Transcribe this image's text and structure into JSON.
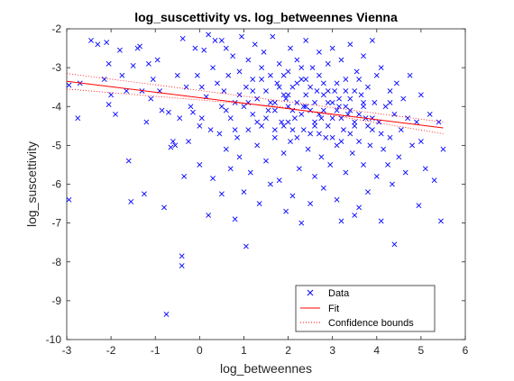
{
  "chart_data": {
    "type": "scatter",
    "title": "log_suscettivity vs. log_betweennes Vienna",
    "xlabel": "log_betweennes",
    "ylabel": "log_suscettivity",
    "xlim": [
      -3,
      6
    ],
    "ylim": [
      -10,
      -2
    ],
    "xticks": [
      -3,
      -2,
      -1,
      0,
      1,
      2,
      3,
      4,
      5,
      6
    ],
    "yticks": [
      -10,
      -9,
      -8,
      -7,
      -6,
      -5,
      -4,
      -3,
      -2
    ],
    "xtick_labels": [
      "-3",
      "-2",
      "-1",
      "0",
      "1",
      "2",
      "3",
      "4",
      "5",
      "6"
    ],
    "ytick_labels": [
      "-10",
      "-9",
      "-8",
      "-7",
      "-6",
      "-5",
      "-4",
      "-3",
      "-2"
    ],
    "grid": false,
    "legend_position": "bottom-right",
    "series": [
      {
        "name": "Data",
        "marker": "x",
        "color": "#0000ff",
        "points": [
          [
            -2.95,
            -3.45
          ],
          [
            -2.95,
            -6.4
          ],
          [
            -2.75,
            -4.3
          ],
          [
            -2.7,
            -3.4
          ],
          [
            -2.45,
            -2.3
          ],
          [
            -2.3,
            -2.4
          ],
          [
            -2.15,
            -3.3
          ],
          [
            -2.1,
            -2.35
          ],
          [
            -2.05,
            -2.9
          ],
          [
            -2.05,
            -3.95
          ],
          [
            -2.0,
            -3.7
          ],
          [
            -1.9,
            -4.2
          ],
          [
            -1.8,
            -2.55
          ],
          [
            -1.75,
            -3.2
          ],
          [
            -1.65,
            -3.6
          ],
          [
            -1.6,
            -5.4
          ],
          [
            -1.55,
            -6.45
          ],
          [
            -1.5,
            -2.95
          ],
          [
            -1.4,
            -2.5
          ],
          [
            -1.35,
            -2.45
          ],
          [
            -1.3,
            -3.6
          ],
          [
            -1.25,
            -6.25
          ],
          [
            -1.2,
            -4.4
          ],
          [
            -1.15,
            -2.9
          ],
          [
            -1.1,
            -3.8
          ],
          [
            -1.05,
            -3.3
          ],
          [
            -0.95,
            -2.8
          ],
          [
            -0.9,
            -3.6
          ],
          [
            -0.85,
            -4.1
          ],
          [
            -0.8,
            -6.6
          ],
          [
            -0.75,
            -9.35
          ],
          [
            -0.7,
            -4.15
          ],
          [
            -0.65,
            -5.05
          ],
          [
            -0.6,
            -4.9
          ],
          [
            -0.55,
            -5.0
          ],
          [
            -0.5,
            -3.2
          ],
          [
            -0.45,
            -4.3
          ],
          [
            -0.4,
            -8.1
          ],
          [
            -0.4,
            -7.85
          ],
          [
            -0.38,
            -2.25
          ],
          [
            -0.35,
            -5.8
          ],
          [
            -0.3,
            -3.5
          ],
          [
            -0.25,
            -4.9
          ],
          [
            -0.2,
            -4.0
          ],
          [
            -0.15,
            -4.15
          ],
          [
            -0.1,
            -2.5
          ],
          [
            -0.05,
            -3.2
          ],
          [
            0.0,
            -4.5
          ],
          [
            0.0,
            -5.5
          ],
          [
            0.05,
            -3.5
          ],
          [
            0.05,
            -4.3
          ],
          [
            0.1,
            -2.55
          ],
          [
            0.15,
            -3.75
          ],
          [
            0.2,
            -2.15
          ],
          [
            0.2,
            -6.8
          ],
          [
            0.25,
            -4.6
          ],
          [
            0.3,
            -3.0
          ],
          [
            0.3,
            -5.85
          ],
          [
            0.35,
            -2.3
          ],
          [
            0.4,
            -3.4
          ],
          [
            0.45,
            -4.7
          ],
          [
            0.5,
            -2.3
          ],
          [
            0.5,
            -6.25
          ],
          [
            0.55,
            -3.6
          ],
          [
            0.6,
            -2.5
          ],
          [
            0.6,
            -5.1
          ],
          [
            0.65,
            -3.2
          ],
          [
            0.7,
            -4.3
          ],
          [
            0.7,
            -5.6
          ],
          [
            0.75,
            -2.7
          ],
          [
            0.8,
            -3.9
          ],
          [
            0.8,
            -6.9
          ],
          [
            0.85,
            -4.8
          ],
          [
            0.9,
            -3.1
          ],
          [
            0.9,
            -5.3
          ],
          [
            0.95,
            -2.2
          ],
          [
            1.0,
            -4.0
          ],
          [
            1.0,
            -6.2
          ],
          [
            1.05,
            -7.6
          ],
          [
            1.05,
            -3.5
          ],
          [
            1.1,
            -4.6
          ],
          [
            1.1,
            -2.8
          ],
          [
            1.15,
            -5.7
          ],
          [
            1.2,
            -3.3
          ],
          [
            1.2,
            -4.2
          ],
          [
            1.25,
            -2.4
          ],
          [
            1.3,
            -3.8
          ],
          [
            1.3,
            -5.0
          ],
          [
            1.35,
            -6.5
          ],
          [
            1.4,
            -3.0
          ],
          [
            1.4,
            -4.5
          ],
          [
            1.45,
            -2.6
          ],
          [
            1.5,
            -3.6
          ],
          [
            1.5,
            -5.4
          ],
          [
            1.55,
            -4.1
          ],
          [
            1.6,
            -3.2
          ],
          [
            1.6,
            -6.0
          ],
          [
            1.65,
            -2.2
          ],
          [
            1.7,
            -3.9
          ],
          [
            1.7,
            -4.8
          ],
          [
            1.75,
            -3.4
          ],
          [
            1.8,
            -5.9
          ],
          [
            1.8,
            -2.9
          ],
          [
            1.85,
            -4.4
          ],
          [
            1.9,
            -3.7
          ],
          [
            1.9,
            -5.2
          ],
          [
            1.95,
            -6.7
          ],
          [
            2.0,
            -3.1
          ],
          [
            2.0,
            -4.0
          ],
          [
            2.05,
            -2.5
          ],
          [
            2.05,
            -4.9
          ],
          [
            2.1,
            -3.5
          ],
          [
            2.1,
            -6.3
          ],
          [
            2.15,
            -4.3
          ],
          [
            2.2,
            -2.8
          ],
          [
            2.2,
            -3.9
          ],
          [
            2.25,
            -5.6
          ],
          [
            2.3,
            -7.0
          ],
          [
            2.3,
            -3.3
          ],
          [
            2.35,
            -4.6
          ],
          [
            2.4,
            -2.3
          ],
          [
            2.4,
            -3.7
          ],
          [
            2.45,
            -5.1
          ],
          [
            2.5,
            -4.1
          ],
          [
            2.5,
            -6.5
          ],
          [
            2.55,
            -3.0
          ],
          [
            2.6,
            -4.5
          ],
          [
            2.6,
            -5.8
          ],
          [
            2.65,
            -3.6
          ],
          [
            2.7,
            -2.6
          ],
          [
            2.7,
            -4.2
          ],
          [
            2.75,
            -5.3
          ],
          [
            2.8,
            -3.4
          ],
          [
            2.8,
            -6.1
          ],
          [
            2.85,
            -4.8
          ],
          [
            2.9,
            -2.9
          ],
          [
            2.9,
            -3.9
          ],
          [
            2.95,
            -5.5
          ],
          [
            3.0,
            -4.3
          ],
          [
            3.0,
            -2.5
          ],
          [
            3.05,
            -3.6
          ],
          [
            3.1,
            -5.0
          ],
          [
            3.1,
            -6.4
          ],
          [
            3.15,
            -4.0
          ],
          [
            3.2,
            -2.8
          ],
          [
            3.2,
            -6.95
          ],
          [
            3.25,
            -4.6
          ],
          [
            3.3,
            -3.3
          ],
          [
            3.3,
            -5.7
          ],
          [
            3.35,
            -4.2
          ],
          [
            3.4,
            -2.4
          ],
          [
            3.4,
            -3.8
          ],
          [
            3.45,
            -5.2
          ],
          [
            3.5,
            -6.8
          ],
          [
            3.5,
            -4.4
          ],
          [
            3.55,
            -3.1
          ],
          [
            3.6,
            -4.9
          ],
          [
            3.6,
            -6.6
          ],
          [
            3.65,
            -3.7
          ],
          [
            3.7,
            -5.5
          ],
          [
            3.7,
            -2.7
          ],
          [
            3.75,
            -4.3
          ],
          [
            3.8,
            -6.2
          ],
          [
            3.8,
            -3.5
          ],
          [
            3.85,
            -5.0
          ],
          [
            3.9,
            -2.3
          ],
          [
            3.9,
            -4.6
          ],
          [
            3.95,
            -3.9
          ],
          [
            4.0,
            -5.8
          ],
          [
            4.0,
            -3.2
          ],
          [
            4.05,
            -4.4
          ],
          [
            4.1,
            -6.95
          ],
          [
            4.1,
            -3.0
          ],
          [
            4.15,
            -5.1
          ],
          [
            4.2,
            -4.0
          ],
          [
            4.25,
            -5.5
          ],
          [
            4.3,
            -3.6
          ],
          [
            4.3,
            -4.8
          ],
          [
            4.35,
            -6.0
          ],
          [
            4.4,
            -7.55
          ],
          [
            4.4,
            -4.2
          ],
          [
            4.45,
            -3.4
          ],
          [
            4.5,
            -5.3
          ],
          [
            4.55,
            -4.6
          ],
          [
            4.6,
            -3.8
          ],
          [
            4.65,
            -5.7
          ],
          [
            4.7,
            -4.3
          ],
          [
            4.75,
            -3.2
          ],
          [
            4.8,
            -5.0
          ],
          [
            4.9,
            -4.4
          ],
          [
            4.95,
            -6.55
          ],
          [
            5.0,
            -3.7
          ],
          [
            5.0,
            -4.9
          ],
          [
            5.1,
            -5.6
          ],
          [
            5.2,
            -4.2
          ],
          [
            5.3,
            -5.9
          ],
          [
            5.4,
            -4.4
          ],
          [
            5.45,
            -6.95
          ],
          [
            5.5,
            -5.1
          ],
          [
            0.6,
            -4.1
          ],
          [
            0.9,
            -3.7
          ],
          [
            1.2,
            -3.6
          ],
          [
            1.5,
            -4.3
          ],
          [
            1.7,
            -4.1
          ],
          [
            1.9,
            -4.5
          ],
          [
            2.0,
            -3.7
          ],
          [
            2.1,
            -4.6
          ],
          [
            2.2,
            -3.4
          ],
          [
            2.3,
            -4.2
          ],
          [
            2.4,
            -4.0
          ],
          [
            2.5,
            -3.5
          ],
          [
            2.6,
            -3.9
          ],
          [
            2.7,
            -4.7
          ],
          [
            2.8,
            -4.1
          ],
          [
            2.9,
            -3.6
          ],
          [
            3.0,
            -4.8
          ],
          [
            3.1,
            -3.4
          ],
          [
            3.2,
            -4.3
          ],
          [
            3.3,
            -4.0
          ],
          [
            3.4,
            -4.7
          ],
          [
            3.5,
            -3.6
          ],
          [
            3.6,
            -4.2
          ],
          [
            3.7,
            -3.9
          ],
          [
            3.8,
            -4.5
          ],
          [
            1.6,
            -3.9
          ],
          [
            1.8,
            -3.5
          ],
          [
            2.0,
            -4.4
          ],
          [
            2.2,
            -4.8
          ],
          [
            2.4,
            -3.3
          ],
          [
            2.6,
            -4.4
          ],
          [
            2.8,
            -3.7
          ],
          [
            3.0,
            -3.9
          ],
          [
            3.2,
            -4.9
          ],
          [
            3.4,
            -4.1
          ],
          [
            3.6,
            -3.3
          ],
          [
            1.3,
            -4.4
          ],
          [
            1.1,
            -3.9
          ],
          [
            0.8,
            -4.6
          ],
          [
            0.5,
            -4.0
          ],
          [
            2.5,
            -4.7
          ],
          [
            2.7,
            -3.2
          ],
          [
            2.9,
            -4.5
          ],
          [
            3.1,
            -4.1
          ],
          [
            3.3,
            -3.6
          ],
          [
            3.5,
            -4.5
          ],
          [
            3.7,
            -4.0
          ],
          [
            3.9,
            -4.3
          ],
          [
            4.1,
            -4.7
          ],
          [
            4.3,
            -3.9
          ],
          [
            1.4,
            -3.3
          ],
          [
            1.9,
            -3.2
          ],
          [
            2.3,
            -3.0
          ],
          [
            2.1,
            -4.1
          ],
          [
            1.7,
            -4.6
          ],
          [
            3.15,
            -3.8
          ],
          [
            2.75,
            -4.3
          ],
          [
            2.35,
            -4.0
          ],
          [
            1.95,
            -3.8
          ]
        ]
      },
      {
        "name": "Fit",
        "line": [
          [
            -3,
            -3.35
          ],
          [
            5.5,
            -4.55
          ]
        ],
        "color": "#ff0000"
      },
      {
        "name": "Confidence bounds",
        "upper": [
          [
            -3,
            -3.15
          ],
          [
            1.8,
            -3.85
          ],
          [
            5.5,
            -4.4
          ]
        ],
        "lower": [
          [
            -3,
            -3.55
          ],
          [
            1.8,
            -4.0
          ],
          [
            5.5,
            -4.7
          ]
        ],
        "color": "#ff0000"
      }
    ]
  }
}
